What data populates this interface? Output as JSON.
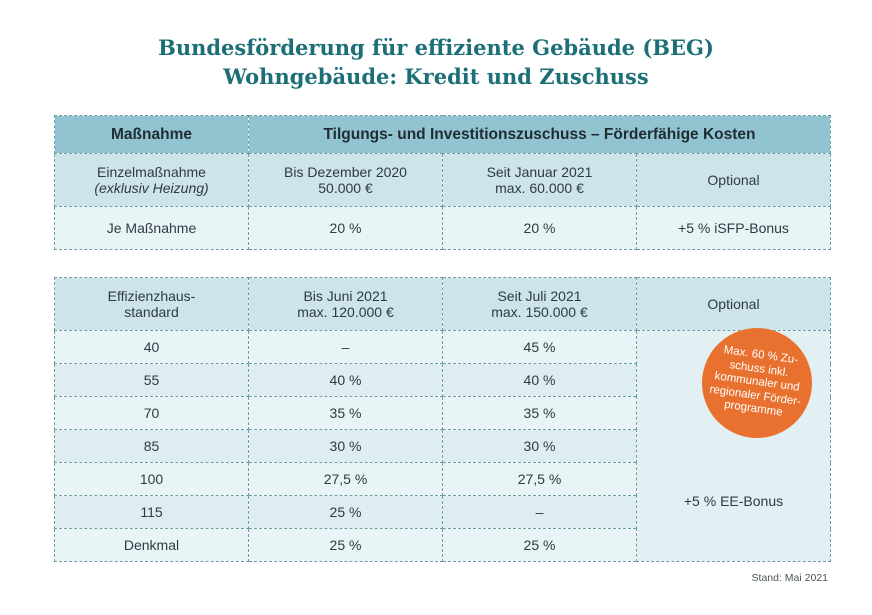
{
  "title": {
    "line1": "Bundesförderung für effiziente Gebäude (BEG)",
    "line2": "Wohngebäude: Kredit und Zuschuss"
  },
  "table1": {
    "header": {
      "col1": "Maßnahme",
      "col2": "Tilgungs- und Investitionszuschuss – Förderfähige Kosten"
    },
    "subheader": {
      "col1_line1": "Einzelmaßnahme",
      "col1_line2": "(exklusiv Heizung)",
      "col2_line1": "Bis Dezember 2020",
      "col2_line2": "50.000 €",
      "col3_line1": "Seit Januar 2021",
      "col3_line2": "max. 60.000 €",
      "col4": "Optional"
    },
    "row": {
      "col1": "Je Maßnahme",
      "col2": "20 %",
      "col3": "20 %",
      "col4": "+5 % iSFP-Bonus"
    }
  },
  "table2": {
    "header": {
      "col1_line1": "Effizienzhaus-",
      "col1_line2": "standard",
      "col2_line1": "Bis Juni 2021",
      "col2_line2": "max. 120.000 €",
      "col3_line1": "Seit Juli 2021",
      "col3_line2": "max. 150.000 €",
      "col4": "Optional"
    },
    "rows": [
      {
        "std": "40",
        "old": "–",
        "new": "45 %"
      },
      {
        "std": "55",
        "old": "40 %",
        "new": "40 %"
      },
      {
        "std": "70",
        "old": "35 %",
        "new": "35 %"
      },
      {
        "std": "85",
        "old": "30 %",
        "new": "30 %"
      },
      {
        "std": "100",
        "old": "27,5 %",
        "new": "27,5 %"
      },
      {
        "std": "115",
        "old": "25 %",
        "new": "–"
      },
      {
        "std": "Denkmal",
        "old": "25 %",
        "new": "25 %"
      }
    ],
    "optional_bonus": "+5 % EE-Bonus"
  },
  "badge": {
    "line1": "Max. 60 % Zu-",
    "line2": "schuss inkl.",
    "line3": "kommunaler und",
    "line4": "regionaler Förder-",
    "line5": "programme"
  },
  "footer": {
    "stand": "Stand: Mai 2021"
  },
  "colors": {
    "title": "#1d6f77",
    "header_bg": "#92c3d1",
    "subheader_bg": "#cde4ea",
    "row_bg": "#e9f4f7",
    "badge_bg": "#e9712f"
  }
}
